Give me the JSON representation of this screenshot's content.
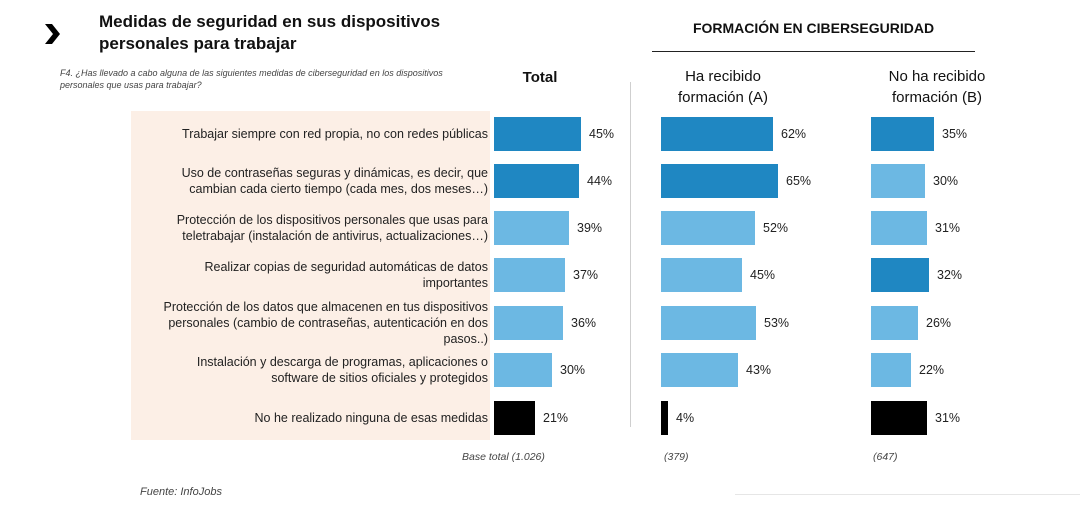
{
  "header": {
    "title_line1": "Medidas de seguridad en sus dispositivos",
    "title_line2": "personales para trabajar",
    "question_line1": "F4. ¿Has llevado a cabo alguna de las siguientes medidas de ciberseguridad en los dispositivos",
    "question_line2": "personales que usas para trabajar?",
    "section_title": "FORMACIÓN EN CIBERSEGURIDAD"
  },
  "columns": {
    "total": "Total",
    "a_line1": "Ha recibido",
    "a_line2": "formación (A)",
    "b_line1": "No ha recibido",
    "b_line2": "formación (B)"
  },
  "footer": {
    "base_total": "Base total (1.026)",
    "base_a": "(379)",
    "base_b": "(647)",
    "source": "Fuente: InfoJobs"
  },
  "colors": {
    "dark_blue": "#1f87c2",
    "light_blue": "#6cb8e3",
    "black": "#000000",
    "label_bg": "#fcefe6"
  },
  "chart_data": {
    "type": "bar",
    "orientation": "horizontal",
    "title": "Medidas de seguridad en sus dispositivos personales para trabajar",
    "xlim": [
      0,
      100
    ],
    "categories": [
      "Trabajar siempre con red propia, no con redes públicas",
      "Uso de contraseñas seguras y dinámicas, es decir, que cambian cada cierto tiempo (cada mes, dos meses…)",
      "Protección de los dispositivos personales que usas para teletrabajar (instalación de antivirus, actualizaciones…)",
      "Realizar copias de seguridad automáticas de datos importantes",
      "Protección de los datos que almacenen en tus dispositivos personales (cambio de contraseñas, autenticación en dos pasos..)",
      "Instalación y descarga de programas, aplicaciones o software de sitios oficiales y protegidos",
      "No he realizado ninguna de esas medidas"
    ],
    "category_lines": [
      [
        "Trabajar siempre con red propia, no con redes públicas"
      ],
      [
        "Uso de contraseñas seguras y dinámicas, es decir, que",
        "cambian cada cierto tiempo (cada mes, dos meses…)"
      ],
      [
        "Protección de los dispositivos personales que usas para",
        "teletrabajar (instalación de antivirus, actualizaciones…)"
      ],
      [
        "Realizar copias de seguridad automáticas de datos",
        "importantes"
      ],
      [
        "Protección de los datos que almacenen en tus dispositivos",
        "personales (cambio de contraseñas, autenticación en dos",
        "pasos..)"
      ],
      [
        "Instalación y descarga de programas, aplicaciones o",
        "software de sitios oficiales y protegidos"
      ],
      [
        "No he realizado ninguna de esas medidas"
      ]
    ],
    "series": [
      {
        "name": "Total",
        "values": [
          45,
          44,
          39,
          37,
          36,
          30,
          21
        ],
        "labels": [
          "45%",
          "44%",
          "39%",
          "37%",
          "36%",
          "30%",
          "21%"
        ],
        "colors": [
          "#1f87c2",
          "#1f87c2",
          "#6cb8e3",
          "#6cb8e3",
          "#6cb8e3",
          "#6cb8e3",
          "#000000"
        ]
      },
      {
        "name": "Ha recibido formación (A)",
        "values": [
          62,
          65,
          52,
          45,
          53,
          43,
          4
        ],
        "labels": [
          "62%",
          "65%",
          "52%",
          "45%",
          "53%",
          "43%",
          "4%"
        ],
        "colors": [
          "#1f87c2",
          "#1f87c2",
          "#6cb8e3",
          "#6cb8e3",
          "#6cb8e3",
          "#6cb8e3",
          "#000000"
        ]
      },
      {
        "name": "No ha recibido formación (B)",
        "values": [
          35,
          30,
          31,
          32,
          26,
          22,
          31
        ],
        "labels": [
          "35%",
          "30%",
          "31%",
          "32%",
          "26%",
          "22%",
          "31%"
        ],
        "colors": [
          "#1f87c2",
          "#6cb8e3",
          "#6cb8e3",
          "#1f87c2",
          "#6cb8e3",
          "#6cb8e3",
          "#000000"
        ]
      }
    ]
  }
}
